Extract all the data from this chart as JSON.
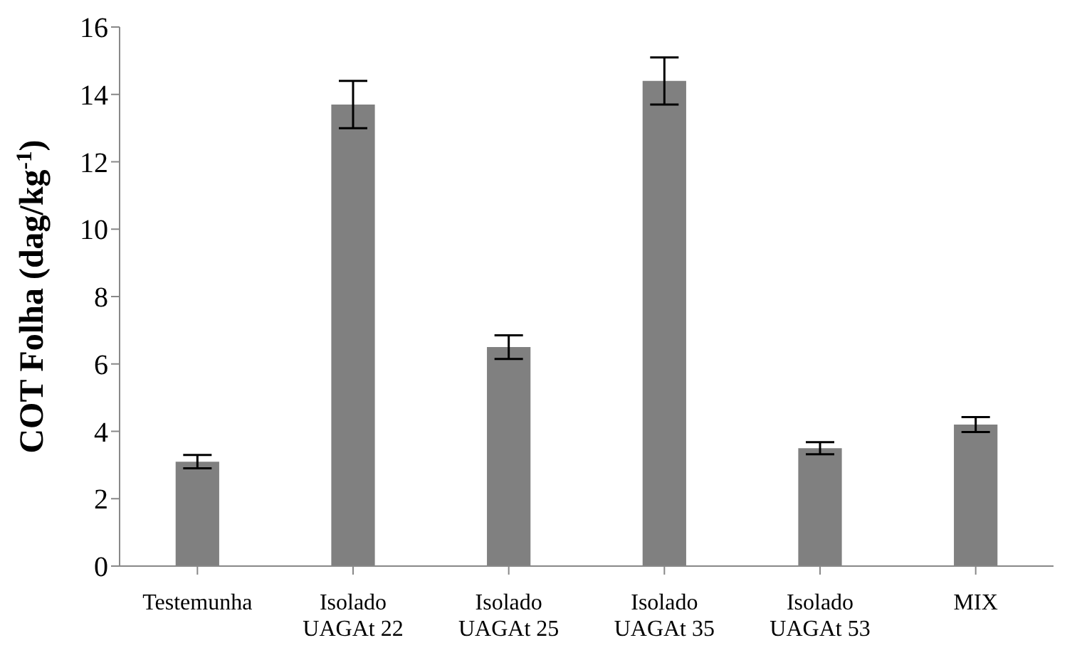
{
  "chart_data": {
    "type": "bar",
    "ylabel": "COT Folha (dag/kg$^{-1}$)",
    "categories": [
      "Testemunha",
      "Isolado\nUAGAt 22",
      "Isolado\nUAGAt 25",
      "Isolado\nUAGAt 35",
      "Isolado\nUAGAt 53",
      "MIX"
    ],
    "values": [
      3.1,
      13.7,
      6.5,
      14.4,
      3.5,
      4.2
    ],
    "errors": [
      0.2,
      0.7,
      0.35,
      0.7,
      0.18,
      0.22
    ],
    "color": "#808080",
    "ylim": [
      0,
      16
    ],
    "yticks": [
      0,
      2,
      4,
      6,
      8,
      10,
      12,
      14,
      16
    ],
    "grid": false
  }
}
